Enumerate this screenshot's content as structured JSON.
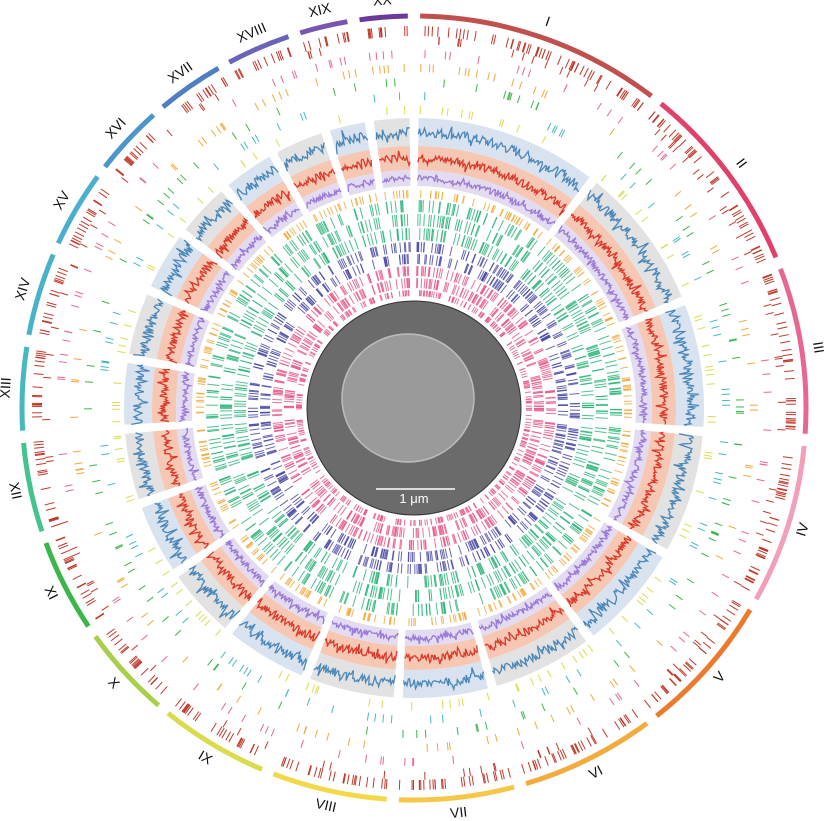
{
  "figure": {
    "chromosomes": [
      {
        "label": "I",
        "color": "#c0504d"
      },
      {
        "label": "II",
        "color": "#e0416a"
      },
      {
        "label": "III",
        "color": "#e8678f"
      },
      {
        "label": "IV",
        "color": "#f2a0b8"
      },
      {
        "label": "V",
        "color": "#ec7a2e"
      },
      {
        "label": "VI",
        "color": "#f2ab3c"
      },
      {
        "label": "VII",
        "color": "#f6c646"
      },
      {
        "label": "VIII",
        "color": "#f3d94a"
      },
      {
        "label": "IX",
        "color": "#d9dc4c"
      },
      {
        "label": "X",
        "color": "#a9cf4a"
      },
      {
        "label": "XI",
        "color": "#3cb54a"
      },
      {
        "label": "XII",
        "color": "#44c38f"
      },
      {
        "label": "XIII",
        "color": "#45b8c0"
      },
      {
        "label": "XIV",
        "color": "#48b3c8"
      },
      {
        "label": "XV",
        "color": "#4aaed0"
      },
      {
        "label": "XVI",
        "color": "#4c96cc"
      },
      {
        "label": "XVII",
        "color": "#4e7fc0"
      },
      {
        "label": "XVIII",
        "color": "#6a63b8"
      },
      {
        "label": "XIX",
        "color": "#7a55b0"
      },
      {
        "label": "XX",
        "color": "#6a3a9a"
      }
    ],
    "track_colors": {
      "blue_line": "#4a86b8",
      "blue_band": "#d9e3f0",
      "red_line": "#d93a2b",
      "red_band": "#f6c7b3",
      "purple_line": "#9a7ad6",
      "purple_band": "#e3dcf1",
      "orange_ticks": "#f2a93b",
      "green_ticks": "#2fb67a",
      "navy_ticks": "#4a4aa8",
      "pink_ticks": "#e85a8a",
      "gray_band": "#e2e2e2"
    },
    "center_image": {
      "scale_bar_label": "1 μm",
      "background": "#6b6b6b",
      "particle": "#9a9a9a"
    }
  }
}
